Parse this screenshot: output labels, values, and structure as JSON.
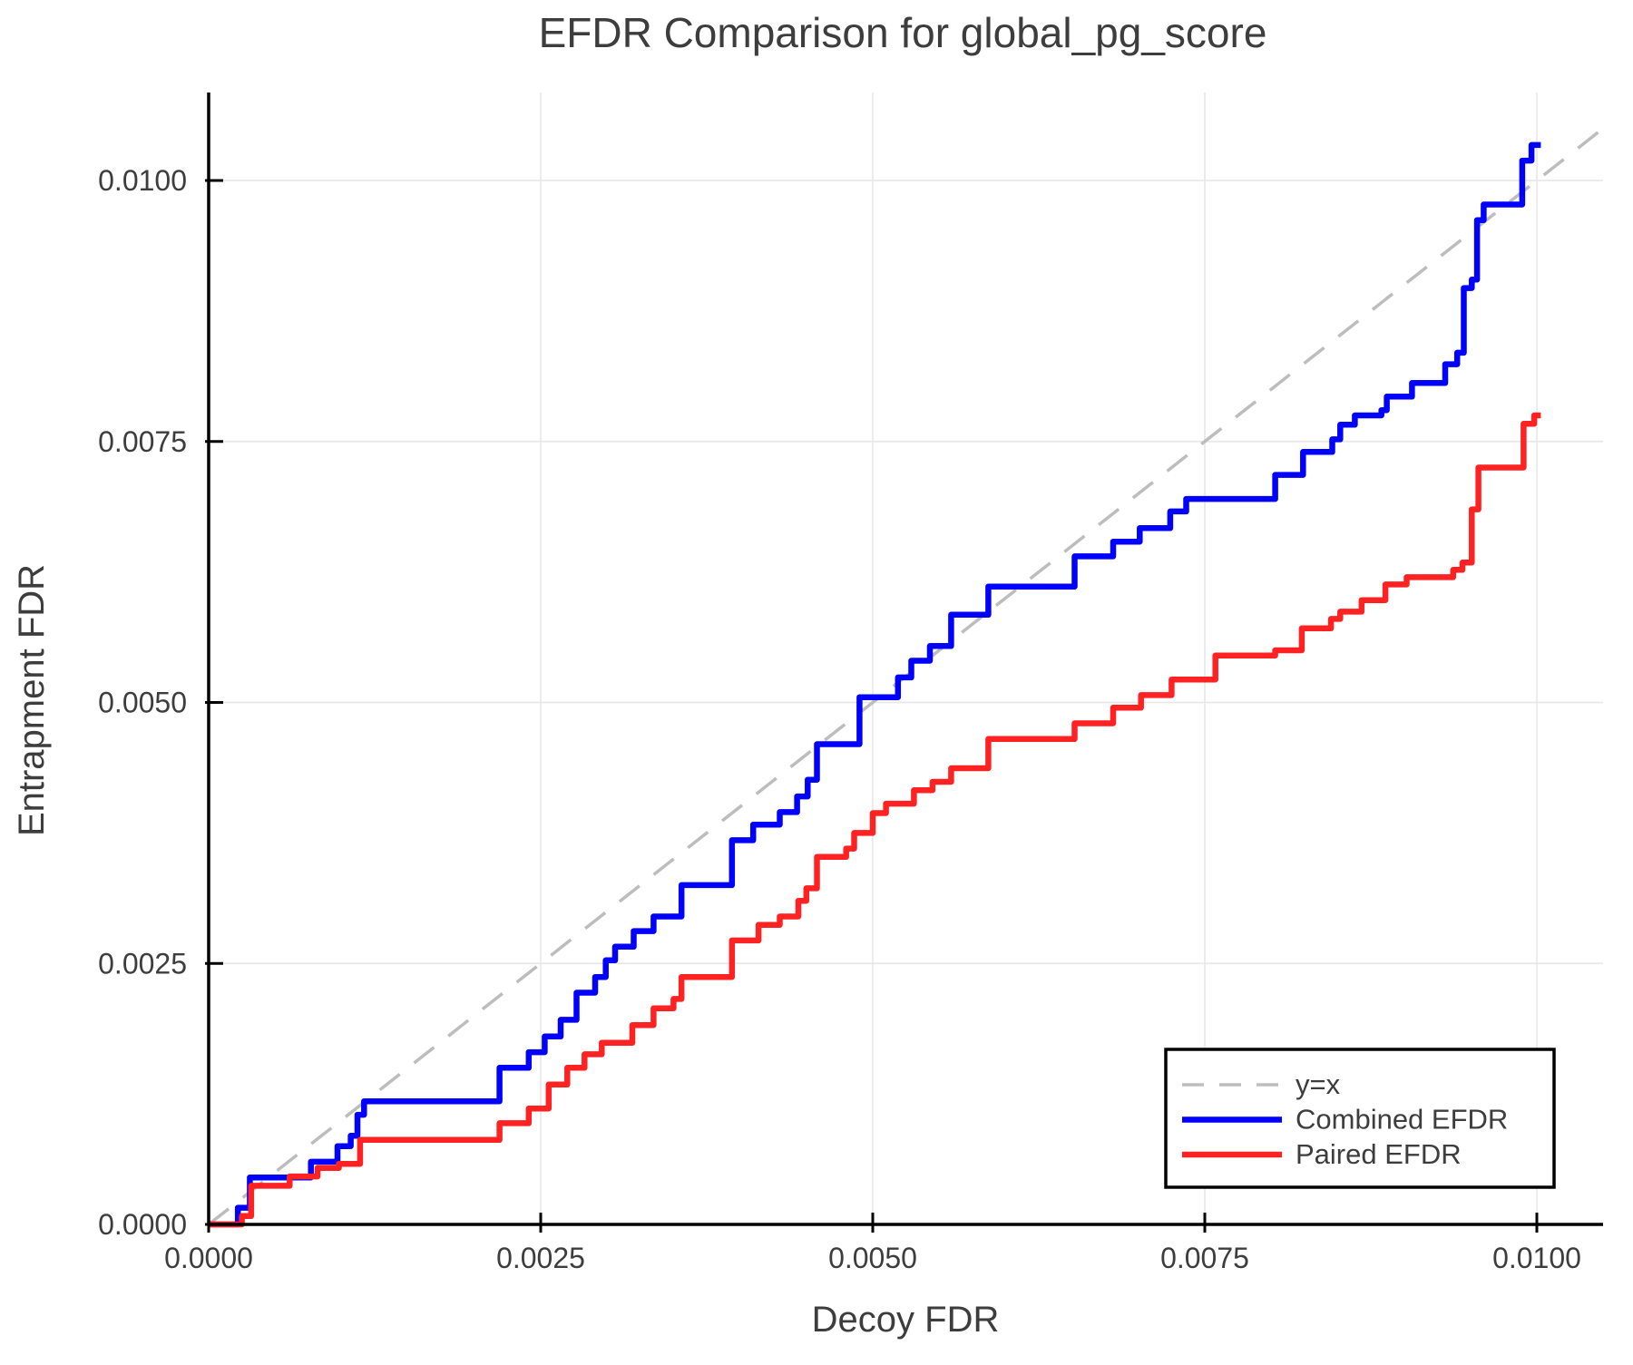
{
  "title": "EFDR Comparison for global_pg_score",
  "x_axis": {
    "label": "Decoy FDR",
    "ticks": [
      {
        "label": "0.0000",
        "value": 0.0
      },
      {
        "label": "0.0025",
        "value": 0.0025
      },
      {
        "label": "0.0050",
        "value": 0.005
      },
      {
        "label": "0.0075",
        "value": 0.0075
      },
      {
        "label": "0.0100",
        "value": 0.01
      }
    ]
  },
  "y_axis": {
    "label": "Entrapment FDR",
    "ticks": [
      {
        "label": "0.0000",
        "value": 0.0
      },
      {
        "label": "0.0025",
        "value": 0.0025
      },
      {
        "label": "0.0050",
        "value": 0.005
      },
      {
        "label": "0.0075",
        "value": 0.0075
      },
      {
        "label": "0.0100",
        "value": 0.01
      }
    ]
  },
  "legend": {
    "entries": [
      {
        "label": "y=x",
        "color": "#bdbdbd",
        "dashed": true
      },
      {
        "label": "Combined EFDR",
        "color": "#0000ff",
        "dashed": false
      },
      {
        "label": "Paired EFDR",
        "color": "#ff2222",
        "dashed": false
      }
    ]
  },
  "colors": {
    "combined": "#0000ff",
    "paired": "#ff2222",
    "identity": "#bdbdbd",
    "grid": "#e8e8e8",
    "spine": "#000000",
    "text": "#3d3d3d"
  },
  "chart_data": {
    "type": "line",
    "subtype": "step",
    "title": "EFDR Comparison for global_pg_score",
    "xlabel": "Decoy FDR",
    "ylabel": "Entrapment FDR",
    "xlim": [
      0,
      0.0105
    ],
    "ylim": [
      0,
      0.01084
    ],
    "grid": true,
    "legend_position": "bottom-right",
    "reference_line": {
      "name": "y=x",
      "from": [
        0,
        0
      ],
      "to": [
        0.0105,
        0.0105
      ],
      "style": "dashed",
      "color": "#bdbdbd"
    },
    "series": [
      {
        "name": "Combined EFDR",
        "color": "#0000ff",
        "points": [
          [
            0.0,
            0.0
          ],
          [
            0.00022,
            0.00016
          ],
          [
            0.00031,
            0.00045
          ],
          [
            0.00077,
            0.0006
          ],
          [
            0.00097,
            0.00075
          ],
          [
            0.00107,
            0.00085
          ],
          [
            0.00112,
            0.00105
          ],
          [
            0.00117,
            0.00118
          ],
          [
            0.00219,
            0.0015
          ],
          [
            0.00241,
            0.00165
          ],
          [
            0.00253,
            0.0018
          ],
          [
            0.00265,
            0.00196
          ],
          [
            0.00277,
            0.00222
          ],
          [
            0.00291,
            0.00237
          ],
          [
            0.00299,
            0.00253
          ],
          [
            0.00306,
            0.00266
          ],
          [
            0.0032,
            0.00281
          ],
          [
            0.00335,
            0.00295
          ],
          [
            0.00356,
            0.00325
          ],
          [
            0.00394,
            0.00368
          ],
          [
            0.0041,
            0.00383
          ],
          [
            0.0043,
            0.00395
          ],
          [
            0.00443,
            0.0041
          ],
          [
            0.00451,
            0.00426
          ],
          [
            0.00458,
            0.0046
          ],
          [
            0.0049,
            0.00505
          ],
          [
            0.00519,
            0.00524
          ],
          [
            0.00529,
            0.0054
          ],
          [
            0.00543,
            0.00554
          ],
          [
            0.00559,
            0.00584
          ],
          [
            0.00587,
            0.00611
          ],
          [
            0.00652,
            0.0064
          ],
          [
            0.00681,
            0.00654
          ],
          [
            0.00701,
            0.00667
          ],
          [
            0.00724,
            0.00683
          ],
          [
            0.00736,
            0.00695
          ],
          [
            0.00803,
            0.00718
          ],
          [
            0.00824,
            0.0074
          ],
          [
            0.00846,
            0.00752
          ],
          [
            0.00852,
            0.00766
          ],
          [
            0.00863,
            0.00775
          ],
          [
            0.00883,
            0.0078
          ],
          [
            0.00887,
            0.00793
          ],
          [
            0.00906,
            0.00806
          ],
          [
            0.00931,
            0.00824
          ],
          [
            0.0094,
            0.00835
          ],
          [
            0.00945,
            0.00897
          ],
          [
            0.00951,
            0.00905
          ],
          [
            0.00955,
            0.00962
          ],
          [
            0.0096,
            0.00977
          ],
          [
            0.00989,
            0.01019
          ],
          [
            0.00996,
            0.01034
          ],
          [
            0.01003,
            0.01034
          ]
        ]
      },
      {
        "name": "Paired EFDR",
        "color": "#ff2222",
        "points": [
          [
            0.0,
            0.0
          ],
          [
            0.00025,
            8e-05
          ],
          [
            0.00032,
            0.00037
          ],
          [
            0.00061,
            0.00046
          ],
          [
            0.00082,
            0.00054
          ],
          [
            0.00098,
            0.00058
          ],
          [
            0.00114,
            0.00081
          ],
          [
            0.00219,
            0.00097
          ],
          [
            0.00241,
            0.00111
          ],
          [
            0.00256,
            0.00134
          ],
          [
            0.0027,
            0.0015
          ],
          [
            0.00283,
            0.00163
          ],
          [
            0.00296,
            0.00174
          ],
          [
            0.00319,
            0.00191
          ],
          [
            0.00335,
            0.00207
          ],
          [
            0.0035,
            0.00216
          ],
          [
            0.00356,
            0.00237
          ],
          [
            0.00394,
            0.00272
          ],
          [
            0.00414,
            0.00287
          ],
          [
            0.0043,
            0.00295
          ],
          [
            0.00444,
            0.0031
          ],
          [
            0.0045,
            0.00322
          ],
          [
            0.00458,
            0.00352
          ],
          [
            0.0048,
            0.0036
          ],
          [
            0.00486,
            0.00375
          ],
          [
            0.005,
            0.00394
          ],
          [
            0.0051,
            0.00403
          ],
          [
            0.00531,
            0.00416
          ],
          [
            0.00545,
            0.00424
          ],
          [
            0.00559,
            0.00437
          ],
          [
            0.00587,
            0.00465
          ],
          [
            0.00652,
            0.0048
          ],
          [
            0.00681,
            0.00495
          ],
          [
            0.00702,
            0.00507
          ],
          [
            0.00725,
            0.00522
          ],
          [
            0.00758,
            0.00545
          ],
          [
            0.00803,
            0.0055
          ],
          [
            0.00823,
            0.00571
          ],
          [
            0.00845,
            0.0058
          ],
          [
            0.00852,
            0.00587
          ],
          [
            0.00868,
            0.00598
          ],
          [
            0.00886,
            0.00613
          ],
          [
            0.00902,
            0.0062
          ],
          [
            0.00937,
            0.00627
          ],
          [
            0.00944,
            0.00634
          ],
          [
            0.00951,
            0.00685
          ],
          [
            0.00956,
            0.00725
          ],
          [
            0.0099,
            0.00767
          ],
          [
            0.00998,
            0.00775
          ],
          [
            0.01003,
            0.00775
          ]
        ]
      }
    ]
  }
}
